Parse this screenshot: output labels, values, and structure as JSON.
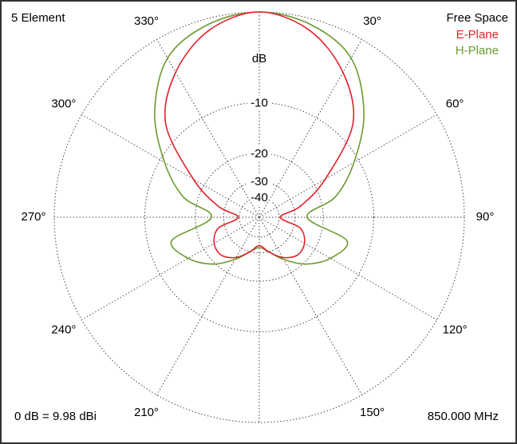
{
  "chart_data": {
    "type": "polar",
    "title": "5 Element",
    "subtitle": "Free Space",
    "radial_label": "dB",
    "annotations": [
      "0 dB = 9.98 dBi",
      "850.000 MHz"
    ],
    "x": [
      0,
      15,
      30,
      45,
      60,
      75,
      90,
      105,
      120,
      135,
      150,
      165,
      180,
      195,
      210,
      225,
      240,
      255,
      270,
      285,
      300,
      315,
      330,
      345
    ],
    "xticks": [
      {
        "value": 30,
        "label": "30°"
      },
      {
        "value": 60,
        "label": "60°"
      },
      {
        "value": 90,
        "label": "90°"
      },
      {
        "value": 120,
        "label": "120°"
      },
      {
        "value": 150,
        "label": "150°"
      },
      {
        "value": 210,
        "label": "210°"
      },
      {
        "value": 240,
        "label": "240°"
      },
      {
        "value": 270,
        "label": "270°"
      },
      {
        "value": 300,
        "label": "300°"
      },
      {
        "value": 330,
        "label": "330°"
      }
    ],
    "ylim": [
      -40,
      0
    ],
    "yticks": [
      -10,
      -20,
      -30,
      -40
    ],
    "grid": true,
    "legend": "top-right",
    "series": [
      {
        "name": "E-Plane",
        "color": "#e32129",
        "values": [
          0,
          -1,
          -3.5,
          -7.5,
          -17,
          -27,
          -39,
          -27,
          -23.5,
          -23,
          -25.5,
          -30,
          -34,
          -30,
          -25.5,
          -23,
          -23.5,
          -27,
          -39,
          -27,
          -17,
          -7.5,
          -3.5,
          -1
        ]
      },
      {
        "name": "H-Plane",
        "color": "#6b9a30",
        "values": [
          0,
          -0.5,
          -1.9,
          -5.6,
          -10.8,
          -16.4,
          -25,
          -14,
          -15.7,
          -19.4,
          -24.7,
          -30,
          -32.8,
          -30,
          -24.7,
          -19.4,
          -15.7,
          -14,
          -25,
          -16.4,
          -10.8,
          -5.6,
          -1.9,
          -0.5
        ]
      }
    ]
  }
}
